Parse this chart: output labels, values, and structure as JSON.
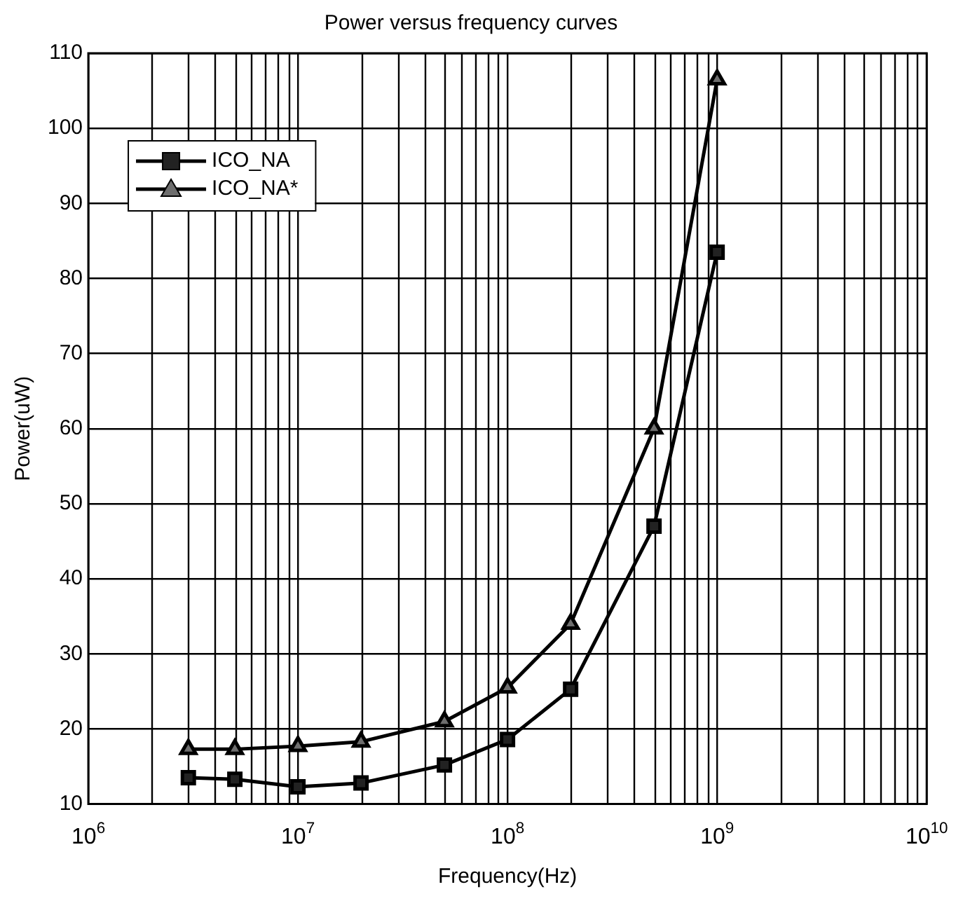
{
  "chart_data": {
    "type": "line",
    "title": "Power versus frequency curves",
    "xlabel": "Frequency(Hz)",
    "ylabel": "Power(uW)",
    "log": "x",
    "grid": true,
    "legend": "top left",
    "line_style": "solid",
    "xlim": [
      1000000,
      10000000000
    ],
    "xticks": [
      {
        "value": 1000000,
        "label": "10$^{6}$"
      },
      {
        "value": 10000000,
        "label": "10$^{7}$"
      },
      {
        "value": 100000000,
        "label": "10$^{8}$"
      },
      {
        "value": 1000000000,
        "label": "10$^{9}$"
      },
      {
        "value": 10000000000,
        "label": "10$^{10}$"
      }
    ],
    "ylim": [
      10,
      110
    ],
    "yticks": [
      10,
      20,
      30,
      40,
      50,
      60,
      70,
      80,
      90,
      100,
      110
    ],
    "x": [
      3000000,
      5000000,
      10000000,
      20000000,
      50000000,
      100000000,
      200000000,
      500000000,
      1000000000
    ],
    "series": [
      {
        "name": "ICO_NA",
        "color": "#222222",
        "marker": "square",
        "values": [
          13.5,
          13.3,
          12.3,
          12.8,
          15.2,
          18.6,
          25.3,
          47,
          83.5
        ]
      },
      {
        "name": "ICO_NA*",
        "color": "#6e6e6e",
        "marker": "triangle",
        "values": [
          17.3,
          17.3,
          17.7,
          18.3,
          21,
          25.5,
          34,
          60,
          106.5
        ]
      }
    ]
  }
}
